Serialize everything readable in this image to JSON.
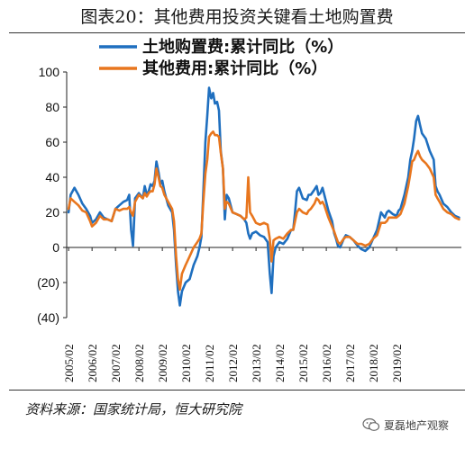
{
  "title": "图表20：其他费用投资关键看土地购置费",
  "source": "资料来源：国家统计局，恒大研究院",
  "watermark": "夏磊地产观察",
  "chart_data": {
    "type": "line",
    "title": "图表20：其他费用投资关键看土地购置费",
    "ylim": [
      -40,
      100
    ],
    "y_ticks": [
      {
        "value": 100,
        "label": "100",
        "color": "#111111"
      },
      {
        "value": 80,
        "label": "80",
        "color": "#111111"
      },
      {
        "value": 60,
        "label": "60",
        "color": "#111111"
      },
      {
        "value": 40,
        "label": "40",
        "color": "#111111"
      },
      {
        "value": 20,
        "label": "20",
        "color": "#111111"
      },
      {
        "value": 0,
        "label": "0",
        "color": "#111111"
      },
      {
        "value": -20,
        "label": "(20)",
        "color": "#cc0000"
      },
      {
        "value": -40,
        "label": "(40)",
        "color": "#cc0000"
      }
    ],
    "x_ticks": [
      "2005/02",
      "2006/02",
      "2007/02",
      "2008/02",
      "2009/02",
      "2010/02",
      "2011/02",
      "2012/02",
      "2013/02",
      "2014/02",
      "2015/02",
      "2016/02",
      "2017/02",
      "2018/02",
      "2019/02"
    ],
    "grid": false,
    "legend_position": "top",
    "series": [
      {
        "name": "土地购置费:累计同比（%）",
        "color": "#1f6fbf",
        "points": [
          [
            2005.08,
            20
          ],
          [
            2005.17,
            30
          ],
          [
            2005.33,
            34
          ],
          [
            2005.5,
            30
          ],
          [
            2005.67,
            25
          ],
          [
            2005.83,
            22
          ],
          [
            2006.0,
            18
          ],
          [
            2006.08,
            14
          ],
          [
            2006.25,
            16
          ],
          [
            2006.42,
            20
          ],
          [
            2006.58,
            17
          ],
          [
            2006.75,
            16
          ],
          [
            2006.92,
            15
          ],
          [
            2007.08,
            22
          ],
          [
            2007.25,
            24
          ],
          [
            2007.42,
            26
          ],
          [
            2007.58,
            27
          ],
          [
            2007.67,
            30
          ],
          [
            2007.75,
            10
          ],
          [
            2007.83,
            1
          ],
          [
            2007.92,
            28
          ],
          [
            2008.08,
            31
          ],
          [
            2008.25,
            28
          ],
          [
            2008.33,
            35
          ],
          [
            2008.42,
            30
          ],
          [
            2008.5,
            32
          ],
          [
            2008.58,
            36
          ],
          [
            2008.67,
            35
          ],
          [
            2008.75,
            38
          ],
          [
            2008.83,
            49
          ],
          [
            2008.92,
            43
          ],
          [
            2009.0,
            36
          ],
          [
            2009.08,
            38
          ],
          [
            2009.17,
            32
          ],
          [
            2009.33,
            24
          ],
          [
            2009.5,
            20
          ],
          [
            2009.58,
            10
          ],
          [
            2009.67,
            -10
          ],
          [
            2009.75,
            -25
          ],
          [
            2009.83,
            -33
          ],
          [
            2009.92,
            -25
          ],
          [
            2010.08,
            -20
          ],
          [
            2010.25,
            -18
          ],
          [
            2010.42,
            -10
          ],
          [
            2010.58,
            -5
          ],
          [
            2010.67,
            0
          ],
          [
            2010.75,
            6
          ],
          [
            2010.83,
            30
          ],
          [
            2010.92,
            60
          ],
          [
            2011.0,
            75
          ],
          [
            2011.08,
            91
          ],
          [
            2011.17,
            85
          ],
          [
            2011.25,
            88
          ],
          [
            2011.33,
            82
          ],
          [
            2011.42,
            83
          ],
          [
            2011.5,
            78
          ],
          [
            2011.58,
            55
          ],
          [
            2011.67,
            45
          ],
          [
            2011.75,
            16
          ],
          [
            2011.83,
            30
          ],
          [
            2011.92,
            28
          ],
          [
            2012.08,
            20
          ],
          [
            2012.25,
            19
          ],
          [
            2012.42,
            18
          ],
          [
            2012.58,
            16
          ],
          [
            2012.67,
            14
          ],
          [
            2012.75,
            8
          ],
          [
            2012.83,
            5
          ],
          [
            2012.92,
            8
          ],
          [
            2013.08,
            9
          ],
          [
            2013.25,
            7
          ],
          [
            2013.42,
            6
          ],
          [
            2013.58,
            3
          ],
          [
            2013.67,
            -15
          ],
          [
            2013.75,
            -26
          ],
          [
            2013.83,
            -5
          ],
          [
            2013.92,
            0
          ],
          [
            2014.08,
            3
          ],
          [
            2014.25,
            2
          ],
          [
            2014.42,
            5
          ],
          [
            2014.58,
            10
          ],
          [
            2014.67,
            10
          ],
          [
            2014.75,
            20
          ],
          [
            2014.83,
            32
          ],
          [
            2014.92,
            34
          ],
          [
            2015.08,
            28
          ],
          [
            2015.25,
            27
          ],
          [
            2015.33,
            30
          ],
          [
            2015.42,
            30
          ],
          [
            2015.58,
            33
          ],
          [
            2015.67,
            35
          ],
          [
            2015.75,
            30
          ],
          [
            2015.83,
            31
          ],
          [
            2015.92,
            34
          ],
          [
            2016.0,
            30
          ],
          [
            2016.17,
            21
          ],
          [
            2016.33,
            15
          ],
          [
            2016.42,
            8
          ],
          [
            2016.5,
            5
          ],
          [
            2016.58,
            1
          ],
          [
            2016.67,
            0
          ],
          [
            2016.83,
            5
          ],
          [
            2016.92,
            7
          ],
          [
            2017.08,
            6
          ],
          [
            2017.25,
            4
          ],
          [
            2017.42,
            1
          ],
          [
            2017.58,
            -1
          ],
          [
            2017.75,
            -2
          ],
          [
            2017.92,
            0
          ],
          [
            2018.08,
            5
          ],
          [
            2018.25,
            10
          ],
          [
            2018.42,
            20
          ],
          [
            2018.58,
            17
          ],
          [
            2018.67,
            20
          ],
          [
            2018.75,
            21
          ],
          [
            2018.92,
            19
          ],
          [
            2019.08,
            18
          ],
          [
            2019.17,
            21
          ],
          [
            2019.25,
            22
          ],
          [
            2019.42,
            30
          ],
          [
            2019.58,
            40
          ],
          [
            2019.67,
            50
          ],
          [
            2019.75,
            55
          ],
          [
            2019.83,
            62
          ],
          [
            2019.92,
            72
          ],
          [
            2020.0,
            75
          ],
          [
            2020.08,
            70
          ],
          [
            2020.17,
            65
          ],
          [
            2020.33,
            62
          ],
          [
            2020.5,
            55
          ],
          [
            2020.67,
            50
          ],
          [
            2020.75,
            35
          ],
          [
            2020.83,
            32
          ],
          [
            2020.92,
            30
          ],
          [
            2021.08,
            25
          ],
          [
            2021.25,
            23
          ],
          [
            2021.42,
            20
          ],
          [
            2021.58,
            18
          ],
          [
            2021.75,
            17
          ]
        ]
      },
      {
        "name": "其他费用:累计同比（%）",
        "color": "#e8761e",
        "points": [
          [
            2005.08,
            22
          ],
          [
            2005.17,
            28
          ],
          [
            2005.33,
            26
          ],
          [
            2005.5,
            24
          ],
          [
            2005.67,
            21
          ],
          [
            2005.83,
            20
          ],
          [
            2006.0,
            15
          ],
          [
            2006.08,
            12
          ],
          [
            2006.25,
            14
          ],
          [
            2006.42,
            18
          ],
          [
            2006.58,
            16
          ],
          [
            2006.75,
            16
          ],
          [
            2006.92,
            15
          ],
          [
            2007.08,
            22
          ],
          [
            2007.25,
            21
          ],
          [
            2007.42,
            22
          ],
          [
            2007.58,
            22
          ],
          [
            2007.67,
            23
          ],
          [
            2007.75,
            20
          ],
          [
            2007.83,
            18
          ],
          [
            2007.92,
            26
          ],
          [
            2008.08,
            30
          ],
          [
            2008.25,
            28
          ],
          [
            2008.33,
            31
          ],
          [
            2008.42,
            29
          ],
          [
            2008.5,
            31
          ],
          [
            2008.58,
            32
          ],
          [
            2008.67,
            32
          ],
          [
            2008.75,
            36
          ],
          [
            2008.83,
            45
          ],
          [
            2008.92,
            40
          ],
          [
            2009.0,
            35
          ],
          [
            2009.08,
            34
          ],
          [
            2009.17,
            30
          ],
          [
            2009.33,
            26
          ],
          [
            2009.5,
            22
          ],
          [
            2009.58,
            15
          ],
          [
            2009.67,
            -5
          ],
          [
            2009.75,
            -18
          ],
          [
            2009.83,
            -24
          ],
          [
            2009.92,
            -15
          ],
          [
            2010.08,
            -10
          ],
          [
            2010.25,
            -5
          ],
          [
            2010.42,
            0
          ],
          [
            2010.58,
            3
          ],
          [
            2010.67,
            5
          ],
          [
            2010.75,
            8
          ],
          [
            2010.83,
            25
          ],
          [
            2010.92,
            42
          ],
          [
            2011.0,
            50
          ],
          [
            2011.08,
            63
          ],
          [
            2011.17,
            65
          ],
          [
            2011.25,
            66
          ],
          [
            2011.33,
            64
          ],
          [
            2011.42,
            64
          ],
          [
            2011.5,
            63
          ],
          [
            2011.58,
            54
          ],
          [
            2011.67,
            45
          ],
          [
            2011.75,
            22
          ],
          [
            2011.83,
            26
          ],
          [
            2011.92,
            25
          ],
          [
            2012.08,
            20
          ],
          [
            2012.25,
            19
          ],
          [
            2012.42,
            18
          ],
          [
            2012.58,
            16
          ],
          [
            2012.67,
            17
          ],
          [
            2012.75,
            40
          ],
          [
            2012.83,
            20
          ],
          [
            2012.92,
            18
          ],
          [
            2013.08,
            14
          ],
          [
            2013.25,
            13
          ],
          [
            2013.42,
            14
          ],
          [
            2013.58,
            13
          ],
          [
            2013.67,
            5
          ],
          [
            2013.75,
            -8
          ],
          [
            2013.83,
            4
          ],
          [
            2013.92,
            5
          ],
          [
            2014.08,
            6
          ],
          [
            2014.25,
            5
          ],
          [
            2014.42,
            8
          ],
          [
            2014.58,
            10
          ],
          [
            2014.67,
            10
          ],
          [
            2014.75,
            15
          ],
          [
            2014.83,
            20
          ],
          [
            2014.92,
            22
          ],
          [
            2015.08,
            20
          ],
          [
            2015.25,
            19
          ],
          [
            2015.33,
            21
          ],
          [
            2015.42,
            22
          ],
          [
            2015.58,
            25
          ],
          [
            2015.67,
            28
          ],
          [
            2015.75,
            27
          ],
          [
            2015.83,
            25
          ],
          [
            2015.92,
            26
          ],
          [
            2016.0,
            24
          ],
          [
            2016.17,
            17
          ],
          [
            2016.33,
            12
          ],
          [
            2016.42,
            9
          ],
          [
            2016.5,
            6
          ],
          [
            2016.58,
            3
          ],
          [
            2016.67,
            2
          ],
          [
            2016.83,
            5
          ],
          [
            2016.92,
            6
          ],
          [
            2017.08,
            6
          ],
          [
            2017.25,
            4
          ],
          [
            2017.42,
            2
          ],
          [
            2017.58,
            2
          ],
          [
            2017.75,
            1
          ],
          [
            2017.92,
            2
          ],
          [
            2018.08,
            5
          ],
          [
            2018.25,
            7
          ],
          [
            2018.42,
            14
          ],
          [
            2018.58,
            14
          ],
          [
            2018.67,
            15
          ],
          [
            2018.75,
            17
          ],
          [
            2018.92,
            17
          ],
          [
            2019.08,
            17
          ],
          [
            2019.17,
            18
          ],
          [
            2019.25,
            19
          ],
          [
            2019.42,
            25
          ],
          [
            2019.58,
            35
          ],
          [
            2019.67,
            42
          ],
          [
            2019.75,
            49
          ],
          [
            2019.83,
            50
          ],
          [
            2019.92,
            53
          ],
          [
            2020.0,
            55
          ],
          [
            2020.08,
            52
          ],
          [
            2020.17,
            50
          ],
          [
            2020.33,
            48
          ],
          [
            2020.5,
            45
          ],
          [
            2020.67,
            40
          ],
          [
            2020.75,
            30
          ],
          [
            2020.83,
            28
          ],
          [
            2020.92,
            26
          ],
          [
            2021.08,
            22
          ],
          [
            2021.25,
            20
          ],
          [
            2021.42,
            19
          ],
          [
            2021.58,
            17
          ],
          [
            2021.75,
            16
          ]
        ]
      }
    ]
  }
}
